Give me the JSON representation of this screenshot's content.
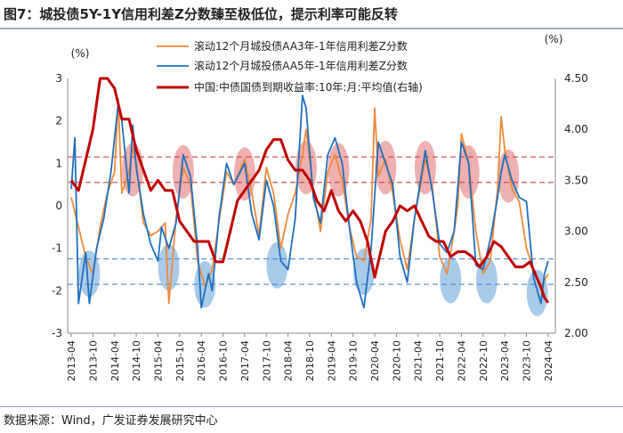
{
  "header": {
    "title": "图7：城投债5Y-1Y信用利差Z分数臻至极低位，提示利率可能反转"
  },
  "footer": {
    "source": "数据来源：Wind，广发证券发展研究中心"
  },
  "chart_data": {
    "type": "line",
    "left_unit": "(%)",
    "right_unit": "(%)",
    "y_left": {
      "min": -3,
      "max": 3,
      "ticks": [
        -3,
        -2,
        -1,
        0,
        1,
        2,
        3
      ]
    },
    "y_right": {
      "min": 2.0,
      "max": 4.5,
      "ticks": [
        "2.00",
        "2.50",
        "3.00",
        "3.50",
        "4.00",
        "4.50"
      ]
    },
    "x_range": [
      "2013-03",
      "2024-06"
    ],
    "x_ticks": [
      "2013-04",
      "2013-10",
      "2014-04",
      "2014-10",
      "2015-04",
      "2015-10",
      "2016-04",
      "2016-10",
      "2017-04",
      "2017-10",
      "2018-04",
      "2018-10",
      "2019-04",
      "2019-10",
      "2020-04",
      "2020-10",
      "2021-04",
      "2021-10",
      "2022-04",
      "2022-10",
      "2023-04",
      "2023-10",
      "2024-04"
    ],
    "legend": {
      "position": "top",
      "entries": [
        "滚动12个月城投债AA3年-1年信用利差Z分数",
        "滚动12个月城投债AA5年-1年信用利差Z分数",
        "中国:中债国债到期收益率:10年:月:平均值(右轴)"
      ]
    },
    "colors": {
      "aa3": "#ee8a3a",
      "aa5": "#1f6fc0",
      "yield": "#c00000",
      "high_zone": "#e07070",
      "low_zone": "#6fa8dc"
    },
    "reference_lines": [
      {
        "axis": "left",
        "value": 1.15,
        "color": "#d03030"
      },
      {
        "axis": "left",
        "value": 0.55,
        "color": "#d03030"
      },
      {
        "axis": "left",
        "value": -1.25,
        "color": "#3a7ec8"
      },
      {
        "axis": "left",
        "value": -1.85,
        "color": "#3a7ec8"
      }
    ],
    "highlight_high": [
      {
        "date": "2014-09",
        "value": 0.85
      },
      {
        "date": "2015-11",
        "value": 0.8
      },
      {
        "date": "2017-04",
        "value": 0.75
      },
      {
        "date": "2018-09",
        "value": 0.9
      },
      {
        "date": "2019-06",
        "value": 0.85
      },
      {
        "date": "2020-07",
        "value": 0.9
      },
      {
        "date": "2021-06",
        "value": 0.9
      },
      {
        "date": "2022-06",
        "value": 0.8
      },
      {
        "date": "2023-05",
        "value": 0.7
      }
    ],
    "highlight_low": [
      {
        "date": "2013-09",
        "value": -1.6
      },
      {
        "date": "2015-07",
        "value": -1.45
      },
      {
        "date": "2016-05",
        "value": -1.85
      },
      {
        "date": "2018-01",
        "value": -1.4
      },
      {
        "date": "2020-01",
        "value": -1.55
      },
      {
        "date": "2022-01",
        "value": -1.75
      },
      {
        "date": "2022-11",
        "value": -1.75
      },
      {
        "date": "2024-01",
        "value": -2.05
      }
    ],
    "series": [
      {
        "name": "滚动12个月城投债AA3年-1年信用利差Z分数",
        "axis": "left",
        "color": "#ee8a3a",
        "points": [
          [
            "2013-04",
            0.2
          ],
          [
            "2013-06",
            -0.5
          ],
          [
            "2013-08",
            -1.2
          ],
          [
            "2013-10",
            -1.6
          ],
          [
            "2013-12",
            -0.5
          ],
          [
            "2014-02",
            0.3
          ],
          [
            "2014-04",
            0.8
          ],
          [
            "2014-05",
            2.5
          ],
          [
            "2014-06",
            0.3
          ],
          [
            "2014-08",
            0.8
          ],
          [
            "2014-09",
            1.4
          ],
          [
            "2014-10",
            1.0
          ],
          [
            "2014-12",
            -0.4
          ],
          [
            "2015-02",
            -0.7
          ],
          [
            "2015-04",
            -0.6
          ],
          [
            "2015-06",
            -0.4
          ],
          [
            "2015-07",
            -2.3
          ],
          [
            "2015-09",
            -0.3
          ],
          [
            "2015-11",
            0.9
          ],
          [
            "2016-01",
            0.5
          ],
          [
            "2016-03",
            -1.3
          ],
          [
            "2016-05",
            -1.9
          ],
          [
            "2016-07",
            -1.5
          ],
          [
            "2016-09",
            -0.3
          ],
          [
            "2016-11",
            0.8
          ],
          [
            "2017-01",
            0.5
          ],
          [
            "2017-04",
            1.1
          ],
          [
            "2017-06",
            0.3
          ],
          [
            "2017-08",
            -0.7
          ],
          [
            "2017-10",
            0.9
          ],
          [
            "2017-12",
            0.3
          ],
          [
            "2018-02",
            -1.0
          ],
          [
            "2018-04",
            -0.2
          ],
          [
            "2018-06",
            0.3
          ],
          [
            "2018-08",
            1.2
          ],
          [
            "2018-09",
            1.8
          ],
          [
            "2018-11",
            0.4
          ],
          [
            "2019-01",
            -0.6
          ],
          [
            "2019-03",
            0.8
          ],
          [
            "2019-05",
            1.2
          ],
          [
            "2019-07",
            0.6
          ],
          [
            "2019-09",
            -0.5
          ],
          [
            "2019-11",
            -1.2
          ],
          [
            "2020-01",
            -1.3
          ],
          [
            "2020-03",
            -0.3
          ],
          [
            "2020-04",
            2.3
          ],
          [
            "2020-05",
            0.7
          ],
          [
            "2020-07",
            1.1
          ],
          [
            "2020-09",
            0.3
          ],
          [
            "2020-11",
            -0.8
          ],
          [
            "2021-01",
            -1.5
          ],
          [
            "2021-03",
            -0.3
          ],
          [
            "2021-06",
            1.1
          ],
          [
            "2021-08",
            0.4
          ],
          [
            "2021-10",
            -1.2
          ],
          [
            "2021-12",
            -1.6
          ],
          [
            "2022-02",
            -0.6
          ],
          [
            "2022-03",
            0.0
          ],
          [
            "2022-04",
            1.7
          ],
          [
            "2022-06",
            1.0
          ],
          [
            "2022-08",
            -0.6
          ],
          [
            "2022-10",
            -1.6
          ],
          [
            "2022-12",
            -1.3
          ],
          [
            "2023-02",
            0.4
          ],
          [
            "2023-03",
            2.1
          ],
          [
            "2023-04",
            1.3
          ],
          [
            "2023-06",
            0.4
          ],
          [
            "2023-08",
            0.1
          ],
          [
            "2023-10",
            -1.0
          ],
          [
            "2023-12",
            -1.5
          ],
          [
            "2024-02",
            -1.9
          ],
          [
            "2024-04",
            -1.6
          ]
        ]
      },
      {
        "name": "滚动12个月城投债AA5年-1年信用利差Z分数",
        "axis": "left",
        "color": "#1f6fc0",
        "points": [
          [
            "2013-04",
            0.4
          ],
          [
            "2013-05",
            1.6
          ],
          [
            "2013-06",
            -2.3
          ],
          [
            "2013-08",
            -1.1
          ],
          [
            "2013-09",
            -2.3
          ],
          [
            "2013-11",
            -1.0
          ],
          [
            "2014-01",
            -0.3
          ],
          [
            "2014-03",
            0.8
          ],
          [
            "2014-05",
            2.4
          ],
          [
            "2014-06",
            2.0
          ],
          [
            "2014-08",
            0.3
          ],
          [
            "2014-09",
            1.9
          ],
          [
            "2014-10",
            0.9
          ],
          [
            "2014-12",
            -0.2
          ],
          [
            "2015-02",
            -0.9
          ],
          [
            "2015-04",
            -1.3
          ],
          [
            "2015-05",
            -0.5
          ],
          [
            "2015-07",
            -1.0
          ],
          [
            "2015-09",
            -0.4
          ],
          [
            "2015-11",
            1.2
          ],
          [
            "2016-01",
            0.7
          ],
          [
            "2016-03",
            -1.0
          ],
          [
            "2016-04",
            -2.4
          ],
          [
            "2016-06",
            -1.6
          ],
          [
            "2016-07",
            -2.0
          ],
          [
            "2016-09",
            -0.2
          ],
          [
            "2016-11",
            1.0
          ],
          [
            "2017-01",
            0.5
          ],
          [
            "2017-04",
            1.0
          ],
          [
            "2017-06",
            -0.2
          ],
          [
            "2017-08",
            -0.8
          ],
          [
            "2017-10",
            0.6
          ],
          [
            "2017-12",
            0.0
          ],
          [
            "2018-02",
            -1.3
          ],
          [
            "2018-04",
            -1.5
          ],
          [
            "2018-06",
            -0.3
          ],
          [
            "2018-08",
            2.6
          ],
          [
            "2018-09",
            2.3
          ],
          [
            "2018-11",
            0.2
          ],
          [
            "2019-01",
            -0.4
          ],
          [
            "2019-03",
            1.2
          ],
          [
            "2019-05",
            1.6
          ],
          [
            "2019-07",
            1.0
          ],
          [
            "2019-09",
            -0.5
          ],
          [
            "2019-11",
            -1.8
          ],
          [
            "2020-01",
            -2.4
          ],
          [
            "2020-03",
            -1.0
          ],
          [
            "2020-05",
            1.5
          ],
          [
            "2020-07",
            1.0
          ],
          [
            "2020-09",
            0.5
          ],
          [
            "2020-11",
            -1.2
          ],
          [
            "2021-01",
            -1.8
          ],
          [
            "2021-03",
            -0.3
          ],
          [
            "2021-06",
            1.3
          ],
          [
            "2021-08",
            0.3
          ],
          [
            "2021-10",
            -0.9
          ],
          [
            "2021-12",
            -1.1
          ],
          [
            "2022-02",
            -0.6
          ],
          [
            "2022-04",
            1.5
          ],
          [
            "2022-06",
            1.0
          ],
          [
            "2022-08",
            -1.4
          ],
          [
            "2022-10",
            -1.5
          ],
          [
            "2022-12",
            -0.8
          ],
          [
            "2023-02",
            0.2
          ],
          [
            "2023-03",
            0.8
          ],
          [
            "2023-04",
            1.2
          ],
          [
            "2023-06",
            0.6
          ],
          [
            "2023-08",
            0.2
          ],
          [
            "2023-10",
            0.1
          ],
          [
            "2023-12",
            -1.7
          ],
          [
            "2024-02",
            -2.3
          ],
          [
            "2024-03",
            -1.6
          ],
          [
            "2024-04",
            -1.3
          ]
        ]
      },
      {
        "name": "中国:中债国债到期收益率:10年:月:平均值(右轴)",
        "axis": "right",
        "color": "#c00000",
        "points": [
          [
            "2013-04",
            3.5
          ],
          [
            "2013-06",
            3.4
          ],
          [
            "2013-08",
            3.7
          ],
          [
            "2013-10",
            4.0
          ],
          [
            "2013-12",
            4.5
          ],
          [
            "2014-02",
            4.5
          ],
          [
            "2014-04",
            4.4
          ],
          [
            "2014-06",
            4.1
          ],
          [
            "2014-08",
            4.1
          ],
          [
            "2014-10",
            3.8
          ],
          [
            "2014-12",
            3.6
          ],
          [
            "2015-02",
            3.4
          ],
          [
            "2015-04",
            3.5
          ],
          [
            "2015-06",
            3.4
          ],
          [
            "2015-08",
            3.4
          ],
          [
            "2015-10",
            3.1
          ],
          [
            "2015-12",
            3.0
          ],
          [
            "2016-02",
            2.9
          ],
          [
            "2016-04",
            2.9
          ],
          [
            "2016-06",
            2.9
          ],
          [
            "2016-08",
            2.7
          ],
          [
            "2016-10",
            2.7
          ],
          [
            "2016-12",
            3.0
          ],
          [
            "2017-02",
            3.3
          ],
          [
            "2017-04",
            3.4
          ],
          [
            "2017-06",
            3.5
          ],
          [
            "2017-08",
            3.6
          ],
          [
            "2017-10",
            3.8
          ],
          [
            "2017-12",
            3.9
          ],
          [
            "2018-02",
            3.9
          ],
          [
            "2018-04",
            3.7
          ],
          [
            "2018-06",
            3.6
          ],
          [
            "2018-08",
            3.6
          ],
          [
            "2018-10",
            3.5
          ],
          [
            "2018-12",
            3.3
          ],
          [
            "2019-02",
            3.2
          ],
          [
            "2019-04",
            3.4
          ],
          [
            "2019-06",
            3.2
          ],
          [
            "2019-08",
            3.1
          ],
          [
            "2019-10",
            3.2
          ],
          [
            "2019-12",
            3.1
          ],
          [
            "2020-02",
            2.9
          ],
          [
            "2020-04",
            2.55
          ],
          [
            "2020-05",
            2.7
          ],
          [
            "2020-07",
            3.0
          ],
          [
            "2020-09",
            3.1
          ],
          [
            "2020-11",
            3.25
          ],
          [
            "2021-01",
            3.2
          ],
          [
            "2021-03",
            3.25
          ],
          [
            "2021-05",
            3.1
          ],
          [
            "2021-07",
            2.95
          ],
          [
            "2021-09",
            2.9
          ],
          [
            "2021-11",
            2.9
          ],
          [
            "2022-01",
            2.75
          ],
          [
            "2022-03",
            2.8
          ],
          [
            "2022-05",
            2.8
          ],
          [
            "2022-07",
            2.75
          ],
          [
            "2022-09",
            2.65
          ],
          [
            "2022-11",
            2.75
          ],
          [
            "2023-01",
            2.9
          ],
          [
            "2023-03",
            2.85
          ],
          [
            "2023-05",
            2.75
          ],
          [
            "2023-07",
            2.65
          ],
          [
            "2023-09",
            2.65
          ],
          [
            "2023-11",
            2.7
          ],
          [
            "2023-12",
            2.62
          ],
          [
            "2024-02",
            2.45
          ],
          [
            "2024-03",
            2.35
          ],
          [
            "2024-04",
            2.3
          ]
        ]
      }
    ]
  }
}
